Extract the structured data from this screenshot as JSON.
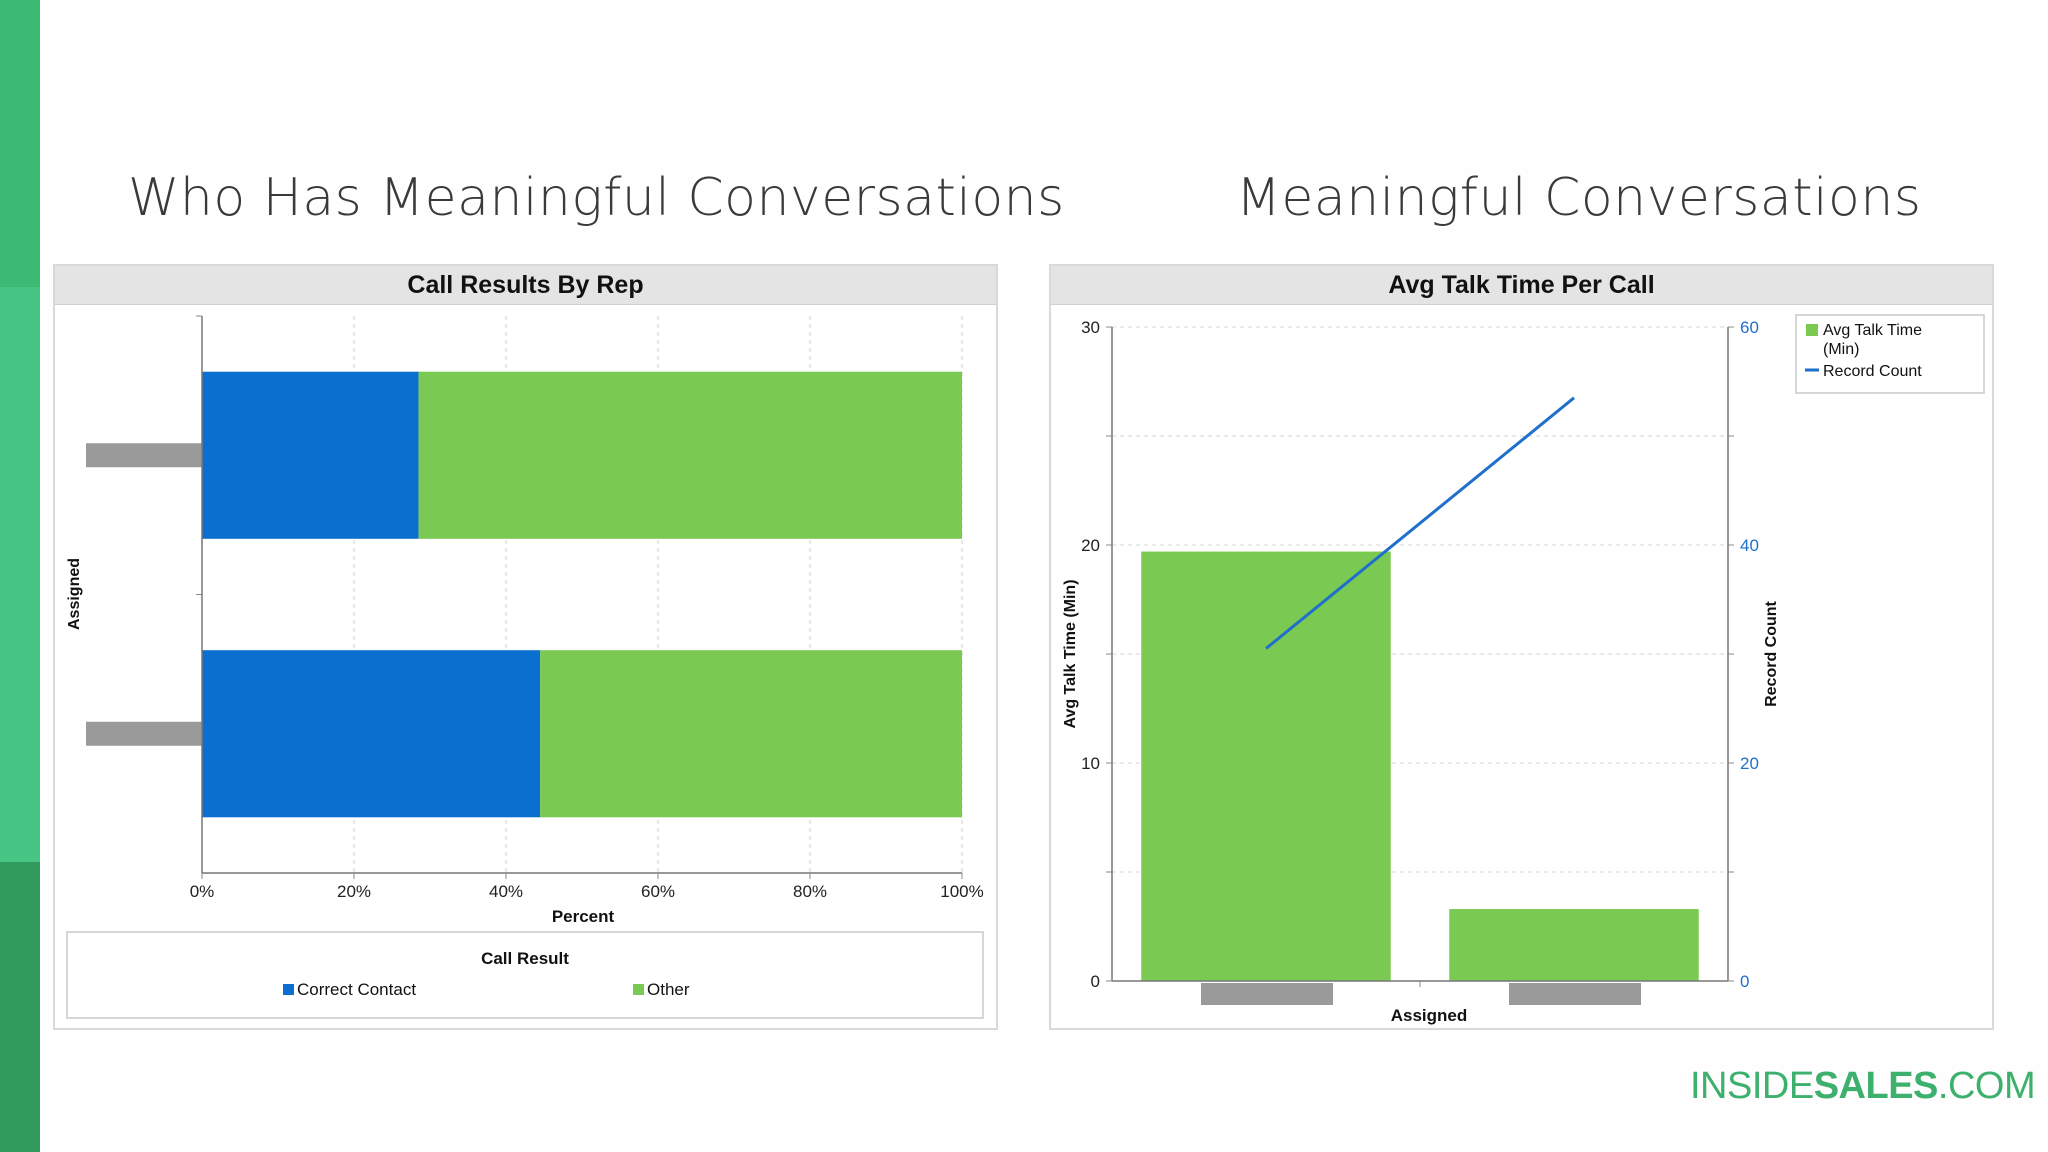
{
  "slide": {
    "left_title": "Who Has Meaningful Conversations",
    "right_title": "Meaningful Conversations",
    "brand": {
      "part1": "INSIDE",
      "part2": "SALES",
      "part3": ".COM"
    },
    "colors": {
      "accent_green": "#3db06d",
      "strip_top": "#3dba74",
      "strip_mid": "#47c585",
      "strip_bottom": "#2f9a5c"
    }
  },
  "chart_data": [
    {
      "type": "bar",
      "orientation": "horizontal",
      "stacked": true,
      "percent": true,
      "title": "Call Results By Rep",
      "xlabel": "Percent",
      "ylabel": "Assigned",
      "xlim": [
        0,
        100
      ],
      "xticks": [
        "0%",
        "20%",
        "40%",
        "60%",
        "80%",
        "100%"
      ],
      "categories": [
        "",
        ""
      ],
      "series": [
        {
          "name": "Correct Contact",
          "color": "#0b6fcf",
          "values": [
            28.5,
            44.5
          ]
        },
        {
          "name": "Other",
          "color": "#7ac952",
          "values": [
            71.5,
            55.5
          ]
        }
      ],
      "legend": {
        "title": "Call Result",
        "position": "bottom"
      },
      "grid": true
    },
    {
      "type": "bar",
      "title": "Avg Talk Time Per Call",
      "xlabel": "Assigned",
      "ylabel": "Avg Talk Time (Min)",
      "ylabel_right": "Record Count",
      "ylim": [
        0,
        30
      ],
      "ylim_right": [
        0,
        60
      ],
      "yticks": [
        "0",
        "10",
        "20",
        "30"
      ],
      "yticks_right": [
        "0",
        "20",
        "40",
        "60"
      ],
      "categories": [
        "",
        ""
      ],
      "series": [
        {
          "name": "Avg Talk Time (Min)",
          "type": "bar",
          "axis": "left",
          "color": "#7ac952",
          "values": [
            19.7,
            3.3
          ]
        },
        {
          "name": "Record Count",
          "type": "line",
          "axis": "right",
          "color": "#1f6fcc",
          "values": [
            30.5,
            53.5
          ]
        }
      ],
      "legend": {
        "position": "top-right"
      },
      "grid": true
    }
  ]
}
